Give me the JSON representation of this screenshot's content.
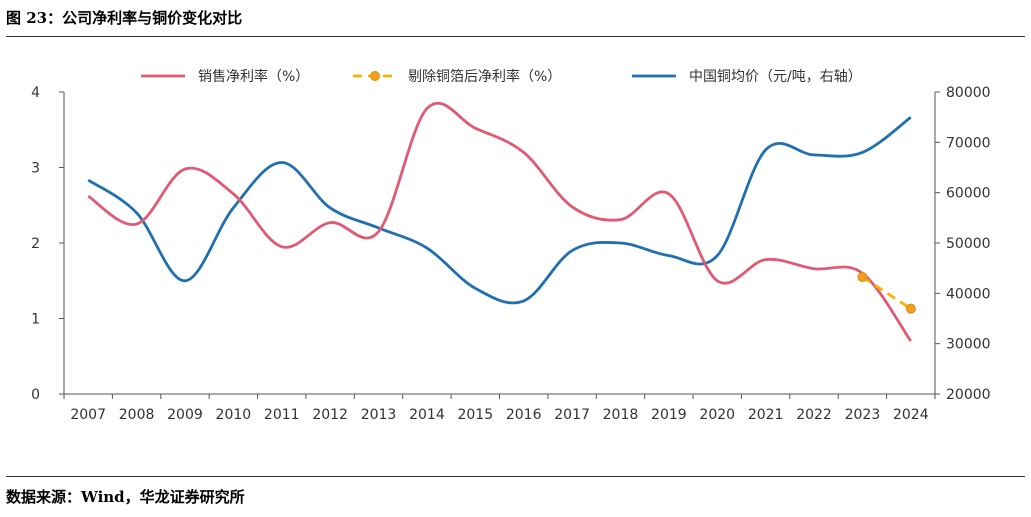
{
  "figure": {
    "title": "图 23：公司净利率与铜价变化对比",
    "source": "数据来源：Wind，华龙证券研究所"
  },
  "chart_data": {
    "type": "line",
    "x": [
      "2007",
      "2008",
      "2009",
      "2010",
      "2011",
      "2012",
      "2013",
      "2014",
      "2015",
      "2016",
      "2017",
      "2018",
      "2019",
      "2020",
      "2021",
      "2022",
      "2023",
      "2024"
    ],
    "legend_placement": "top",
    "y_left": {
      "min": 0,
      "max": 4,
      "ticks": [
        "0",
        "1",
        "2",
        "3",
        "4"
      ]
    },
    "y_right": {
      "min": 20000,
      "max": 80000,
      "ticks": [
        "20000",
        "30000",
        "40000",
        "50000",
        "60000",
        "70000",
        "80000"
      ]
    },
    "series": [
      {
        "name": "销售净利率（%）",
        "axis": "left",
        "color": "#e05a73",
        "style": "solid",
        "values": [
          2.62,
          2.25,
          2.98,
          2.65,
          1.95,
          2.27,
          2.15,
          3.78,
          3.52,
          3.2,
          2.48,
          2.31,
          2.65,
          1.5,
          1.78,
          1.66,
          1.6,
          0.7
        ]
      },
      {
        "name": "剔除铜箔后净利率（%）",
        "axis": "left",
        "color": "#f5b400",
        "marker_color": "#f0a020",
        "style": "dashed",
        "x": [
          "2023",
          "2024"
        ],
        "values": [
          1.55,
          1.13
        ]
      },
      {
        "name": "中国铜均价（元/吨，右轴）",
        "axis": "right",
        "color": "#1f6fb2",
        "style": "solid",
        "values": [
          62500,
          56000,
          42500,
          57000,
          66000,
          57000,
          53000,
          49000,
          41000,
          38500,
          48500,
          50000,
          47500,
          47500,
          68500,
          67500,
          68000,
          75000
        ]
      }
    ]
  }
}
